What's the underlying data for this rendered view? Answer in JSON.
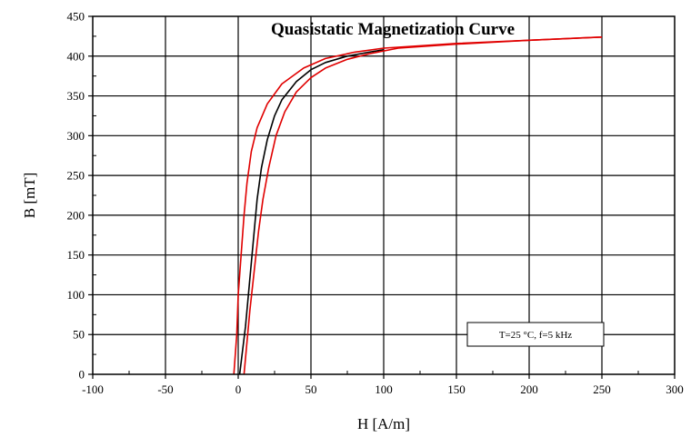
{
  "chart_data": {
    "type": "line",
    "title": "Quasistatic Magnetization Curve",
    "xlabel": "H [A/m]",
    "ylabel": "B [mT]",
    "xlim": [
      -100,
      300
    ],
    "ylim": [
      0,
      450
    ],
    "xticks": [
      -100,
      -50,
      0,
      50,
      100,
      150,
      200,
      250,
      300
    ],
    "yticks": [
      0,
      50,
      100,
      150,
      200,
      250,
      300,
      350,
      400,
      450
    ],
    "grid": true,
    "annotation": "T=25 °C, f=5 kHz",
    "series": [
      {
        "color": "#000000",
        "points": [
          [
            1,
            0
          ],
          [
            3,
            30
          ],
          [
            5,
            60
          ],
          [
            7,
            100
          ],
          [
            10,
            160
          ],
          [
            13,
            220
          ],
          [
            16,
            260
          ],
          [
            20,
            295
          ],
          [
            25,
            325
          ],
          [
            30,
            345
          ],
          [
            40,
            368
          ],
          [
            50,
            383
          ],
          [
            60,
            392
          ],
          [
            75,
            400
          ],
          [
            90,
            405
          ],
          [
            100,
            408
          ]
        ]
      },
      {
        "color": "#e00000",
        "points": [
          [
            4,
            0
          ],
          [
            6,
            40
          ],
          [
            8,
            80
          ],
          [
            11,
            130
          ],
          [
            14,
            180
          ],
          [
            17,
            220
          ],
          [
            21,
            260
          ],
          [
            26,
            300
          ],
          [
            32,
            330
          ],
          [
            40,
            355
          ],
          [
            50,
            373
          ],
          [
            60,
            385
          ],
          [
            75,
            396
          ],
          [
            90,
            403
          ],
          [
            110,
            410
          ],
          [
            150,
            415
          ],
          [
            200,
            420
          ],
          [
            250,
            424
          ]
        ]
      },
      {
        "color": "#e00000",
        "points": [
          [
            -3,
            0
          ],
          [
            -1,
            50
          ],
          [
            0,
            100
          ],
          [
            2,
            150
          ],
          [
            4,
            200
          ],
          [
            6,
            240
          ],
          [
            9,
            280
          ],
          [
            13,
            310
          ],
          [
            20,
            340
          ],
          [
            30,
            365
          ],
          [
            45,
            385
          ],
          [
            60,
            397
          ],
          [
            80,
            405
          ],
          [
            100,
            410
          ],
          [
            150,
            416
          ],
          [
            200,
            420
          ],
          [
            250,
            424
          ]
        ]
      }
    ]
  }
}
